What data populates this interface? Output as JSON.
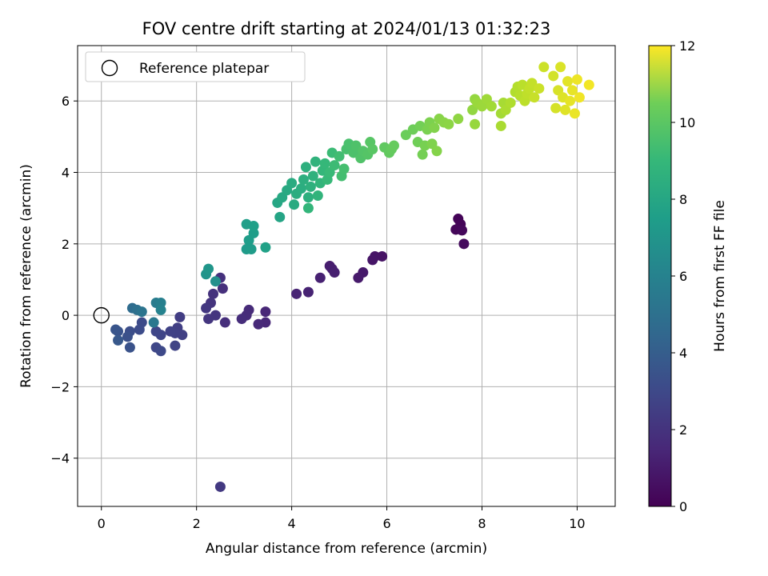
{
  "chart_data": {
    "type": "scatter",
    "title": "FOV centre drift starting at 2024/01/13 01:32:23",
    "xlabel": "Angular distance from reference (arcmin)",
    "ylabel": "Rotation from reference (arcmin)",
    "xlim": [
      -0.5,
      10.8
    ],
    "ylim": [
      -5.35,
      7.55
    ],
    "xticks": [
      0,
      2,
      4,
      6,
      8,
      10
    ],
    "yticks": [
      -4,
      -2,
      0,
      2,
      4,
      6
    ],
    "xtick_labels": [
      "0",
      "2",
      "4",
      "6",
      "8",
      "10"
    ],
    "ytick_labels": [
      "−4",
      "−2",
      "0",
      "2",
      "4",
      "6"
    ],
    "grid": true,
    "legend": {
      "position": "top-left",
      "label": "Reference platepar"
    },
    "reference_point": {
      "x": 0,
      "y": 0
    },
    "colorbar": {
      "label": "Hours from first FF file",
      "range": [
        0,
        12
      ],
      "ticks": [
        0,
        2,
        4,
        6,
        8,
        10,
        12
      ],
      "tick_labels": [
        "0",
        "2",
        "4",
        "6",
        "8",
        "10",
        "12"
      ],
      "colormap": "viridis"
    },
    "points": [
      {
        "x": 7.5,
        "y": 2.7,
        "c": 0.1
      },
      {
        "x": 7.55,
        "y": 2.55,
        "c": 0.15
      },
      {
        "x": 7.45,
        "y": 2.4,
        "c": 0.2
      },
      {
        "x": 7.58,
        "y": 2.38,
        "c": 0.25
      },
      {
        "x": 7.62,
        "y": 2.0,
        "c": 0.35
      },
      {
        "x": 5.9,
        "y": 1.65,
        "c": 0.6
      },
      {
        "x": 5.75,
        "y": 1.65,
        "c": 0.65
      },
      {
        "x": 5.7,
        "y": 1.55,
        "c": 0.7
      },
      {
        "x": 5.5,
        "y": 1.2,
        "c": 0.8
      },
      {
        "x": 5.4,
        "y": 1.05,
        "c": 0.85
      },
      {
        "x": 4.8,
        "y": 1.38,
        "c": 0.95
      },
      {
        "x": 4.85,
        "y": 1.3,
        "c": 1.0
      },
      {
        "x": 4.9,
        "y": 1.2,
        "c": 1.05
      },
      {
        "x": 4.6,
        "y": 1.05,
        "c": 1.1
      },
      {
        "x": 4.35,
        "y": 0.65,
        "c": 1.15
      },
      {
        "x": 4.1,
        "y": 0.6,
        "c": 1.2
      },
      {
        "x": 3.45,
        "y": 0.1,
        "c": 1.3
      },
      {
        "x": 3.45,
        "y": -0.2,
        "c": 1.35
      },
      {
        "x": 3.3,
        "y": -0.25,
        "c": 1.4
      },
      {
        "x": 3.1,
        "y": 0.15,
        "c": 1.45
      },
      {
        "x": 3.05,
        "y": 0.0,
        "c": 1.5
      },
      {
        "x": 2.95,
        "y": -0.1,
        "c": 1.55
      },
      {
        "x": 2.6,
        "y": -0.2,
        "c": 1.6
      },
      {
        "x": 2.55,
        "y": 0.75,
        "c": 1.65
      },
      {
        "x": 2.5,
        "y": 1.05,
        "c": 1.7
      },
      {
        "x": 2.35,
        "y": 0.6,
        "c": 1.75
      },
      {
        "x": 2.3,
        "y": 0.35,
        "c": 1.8
      },
      {
        "x": 2.4,
        "y": 0.0,
        "c": 1.85
      },
      {
        "x": 2.25,
        "y": -0.1,
        "c": 1.9
      },
      {
        "x": 2.2,
        "y": 0.2,
        "c": 1.95
      },
      {
        "x": 2.5,
        "y": -4.8,
        "c": 2.0
      },
      {
        "x": 1.65,
        "y": -0.05,
        "c": 2.2
      },
      {
        "x": 1.6,
        "y": -0.35,
        "c": 2.25
      },
      {
        "x": 1.7,
        "y": -0.55,
        "c": 2.3
      },
      {
        "x": 1.55,
        "y": -0.5,
        "c": 2.35
      },
      {
        "x": 1.45,
        "y": -0.45,
        "c": 2.4
      },
      {
        "x": 1.55,
        "y": -0.85,
        "c": 2.45
      },
      {
        "x": 1.25,
        "y": -0.55,
        "c": 2.5
      },
      {
        "x": 1.15,
        "y": -0.45,
        "c": 2.55
      },
      {
        "x": 1.15,
        "y": -0.9,
        "c": 2.6
      },
      {
        "x": 1.25,
        "y": -1.0,
        "c": 2.65
      },
      {
        "x": 0.85,
        "y": -0.2,
        "c": 2.75
      },
      {
        "x": 0.8,
        "y": -0.4,
        "c": 2.8
      },
      {
        "x": 0.6,
        "y": -0.45,
        "c": 2.9
      },
      {
        "x": 0.55,
        "y": -0.6,
        "c": 3.0
      },
      {
        "x": 0.6,
        "y": -0.9,
        "c": 3.05
      },
      {
        "x": 0.35,
        "y": -0.45,
        "c": 3.1
      },
      {
        "x": 0.3,
        "y": -0.4,
        "c": 3.2
      },
      {
        "x": 0.35,
        "y": -0.7,
        "c": 3.3
      },
      {
        "x": 0.65,
        "y": 0.2,
        "c": 4.2
      },
      {
        "x": 0.75,
        "y": 0.15,
        "c": 4.4
      },
      {
        "x": 0.85,
        "y": 0.1,
        "c": 4.6
      },
      {
        "x": 1.1,
        "y": -0.2,
        "c": 4.8
      },
      {
        "x": 1.15,
        "y": 0.35,
        "c": 5.0
      },
      {
        "x": 1.25,
        "y": 0.35,
        "c": 5.2
      },
      {
        "x": 1.25,
        "y": 0.15,
        "c": 5.35
      },
      {
        "x": 2.4,
        "y": 0.95,
        "c": 6.0
      },
      {
        "x": 2.2,
        "y": 1.15,
        "c": 6.2
      },
      {
        "x": 2.25,
        "y": 1.3,
        "c": 6.3
      },
      {
        "x": 3.05,
        "y": 1.85,
        "c": 6.5
      },
      {
        "x": 3.15,
        "y": 1.85,
        "c": 6.55
      },
      {
        "x": 3.1,
        "y": 2.1,
        "c": 6.6
      },
      {
        "x": 3.2,
        "y": 2.3,
        "c": 6.65
      },
      {
        "x": 3.05,
        "y": 2.55,
        "c": 6.7
      },
      {
        "x": 3.2,
        "y": 2.5,
        "c": 6.75
      },
      {
        "x": 3.45,
        "y": 1.9,
        "c": 6.8
      },
      {
        "x": 3.75,
        "y": 2.75,
        "c": 7.0
      },
      {
        "x": 3.7,
        "y": 3.15,
        "c": 7.1
      },
      {
        "x": 3.8,
        "y": 3.3,
        "c": 7.2
      },
      {
        "x": 3.9,
        "y": 3.5,
        "c": 7.25
      },
      {
        "x": 4.05,
        "y": 3.1,
        "c": 7.3
      },
      {
        "x": 4.0,
        "y": 3.7,
        "c": 7.35
      },
      {
        "x": 4.1,
        "y": 3.4,
        "c": 7.4
      },
      {
        "x": 4.2,
        "y": 3.55,
        "c": 7.45
      },
      {
        "x": 4.25,
        "y": 3.8,
        "c": 7.5
      },
      {
        "x": 4.3,
        "y": 4.15,
        "c": 7.55
      },
      {
        "x": 4.35,
        "y": 3.3,
        "c": 7.6
      },
      {
        "x": 4.4,
        "y": 3.6,
        "c": 7.65
      },
      {
        "x": 4.45,
        "y": 3.9,
        "c": 7.7
      },
      {
        "x": 4.5,
        "y": 4.3,
        "c": 7.75
      },
      {
        "x": 4.55,
        "y": 3.35,
        "c": 7.8
      },
      {
        "x": 4.6,
        "y": 3.7,
        "c": 7.85
      },
      {
        "x": 4.35,
        "y": 3.0,
        "c": 7.9
      },
      {
        "x": 4.65,
        "y": 4.05,
        "c": 7.95
      },
      {
        "x": 4.7,
        "y": 4.25,
        "c": 8.0
      },
      {
        "x": 4.75,
        "y": 3.8,
        "c": 8.05
      },
      {
        "x": 4.8,
        "y": 4.0,
        "c": 8.1
      },
      {
        "x": 4.85,
        "y": 4.55,
        "c": 8.15
      },
      {
        "x": 4.9,
        "y": 4.2,
        "c": 8.2
      },
      {
        "x": 5.0,
        "y": 4.45,
        "c": 8.3
      },
      {
        "x": 5.05,
        "y": 3.9,
        "c": 8.35
      },
      {
        "x": 5.1,
        "y": 4.1,
        "c": 8.4
      },
      {
        "x": 5.15,
        "y": 4.65,
        "c": 8.45
      },
      {
        "x": 5.2,
        "y": 4.8,
        "c": 8.5
      },
      {
        "x": 5.3,
        "y": 4.55,
        "c": 8.55
      },
      {
        "x": 5.35,
        "y": 4.75,
        "c": 8.6
      },
      {
        "x": 5.45,
        "y": 4.4,
        "c": 8.65
      },
      {
        "x": 5.5,
        "y": 4.6,
        "c": 8.7
      },
      {
        "x": 5.6,
        "y": 4.5,
        "c": 8.75
      },
      {
        "x": 5.65,
        "y": 4.85,
        "c": 8.8
      },
      {
        "x": 5.7,
        "y": 4.65,
        "c": 8.85
      },
      {
        "x": 5.95,
        "y": 4.7,
        "c": 9.0
      },
      {
        "x": 6.05,
        "y": 4.55,
        "c": 9.05
      },
      {
        "x": 6.1,
        "y": 4.65,
        "c": 9.1
      },
      {
        "x": 6.15,
        "y": 4.75,
        "c": 9.15
      },
      {
        "x": 6.4,
        "y": 5.05,
        "c": 9.25
      },
      {
        "x": 6.55,
        "y": 5.2,
        "c": 9.3
      },
      {
        "x": 6.65,
        "y": 4.85,
        "c": 9.35
      },
      {
        "x": 6.7,
        "y": 5.3,
        "c": 9.4
      },
      {
        "x": 6.75,
        "y": 4.5,
        "c": 9.45
      },
      {
        "x": 6.8,
        "y": 4.75,
        "c": 9.5
      },
      {
        "x": 6.85,
        "y": 5.2,
        "c": 9.55
      },
      {
        "x": 6.9,
        "y": 5.4,
        "c": 9.6
      },
      {
        "x": 6.95,
        "y": 4.8,
        "c": 9.65
      },
      {
        "x": 7.0,
        "y": 5.25,
        "c": 9.7
      },
      {
        "x": 7.05,
        "y": 4.6,
        "c": 9.75
      },
      {
        "x": 7.1,
        "y": 5.5,
        "c": 9.8
      },
      {
        "x": 7.2,
        "y": 5.4,
        "c": 9.85
      },
      {
        "x": 7.3,
        "y": 5.35,
        "c": 9.9
      },
      {
        "x": 7.5,
        "y": 5.5,
        "c": 9.95
      },
      {
        "x": 7.8,
        "y": 5.75,
        "c": 10.0
      },
      {
        "x": 7.85,
        "y": 6.05,
        "c": 10.05
      },
      {
        "x": 7.85,
        "y": 5.35,
        "c": 10.1
      },
      {
        "x": 7.9,
        "y": 5.95,
        "c": 10.15
      },
      {
        "x": 8.0,
        "y": 5.85,
        "c": 10.2
      },
      {
        "x": 8.1,
        "y": 6.05,
        "c": 10.25
      },
      {
        "x": 8.2,
        "y": 5.85,
        "c": 10.3
      },
      {
        "x": 8.4,
        "y": 5.65,
        "c": 10.35
      },
      {
        "x": 8.45,
        "y": 5.95,
        "c": 10.4
      },
      {
        "x": 8.4,
        "y": 5.3,
        "c": 10.45
      },
      {
        "x": 8.5,
        "y": 5.75,
        "c": 10.5
      },
      {
        "x": 8.6,
        "y": 5.95,
        "c": 10.55
      },
      {
        "x": 8.7,
        "y": 6.25,
        "c": 10.6
      },
      {
        "x": 8.75,
        "y": 6.4,
        "c": 10.65
      },
      {
        "x": 8.8,
        "y": 6.15,
        "c": 10.7
      },
      {
        "x": 8.85,
        "y": 6.45,
        "c": 10.75
      },
      {
        "x": 8.9,
        "y": 6.0,
        "c": 10.8
      },
      {
        "x": 8.95,
        "y": 6.2,
        "c": 10.85
      },
      {
        "x": 9.0,
        "y": 6.35,
        "c": 10.9
      },
      {
        "x": 9.05,
        "y": 6.5,
        "c": 10.95
      },
      {
        "x": 9.1,
        "y": 6.1,
        "c": 11.0
      },
      {
        "x": 9.2,
        "y": 6.35,
        "c": 11.05
      },
      {
        "x": 9.3,
        "y": 6.95,
        "c": 11.1
      },
      {
        "x": 9.5,
        "y": 6.7,
        "c": 11.2
      },
      {
        "x": 9.55,
        "y": 5.8,
        "c": 11.25
      },
      {
        "x": 9.6,
        "y": 6.3,
        "c": 11.3
      },
      {
        "x": 9.65,
        "y": 6.95,
        "c": 11.35
      },
      {
        "x": 9.7,
        "y": 6.1,
        "c": 11.4
      },
      {
        "x": 9.75,
        "y": 5.75,
        "c": 11.45
      },
      {
        "x": 9.8,
        "y": 6.55,
        "c": 11.5
      },
      {
        "x": 9.85,
        "y": 6.0,
        "c": 11.55
      },
      {
        "x": 9.9,
        "y": 6.3,
        "c": 11.6
      },
      {
        "x": 9.95,
        "y": 5.65,
        "c": 11.65
      },
      {
        "x": 10.0,
        "y": 6.6,
        "c": 11.7
      },
      {
        "x": 10.05,
        "y": 6.1,
        "c": 11.75
      },
      {
        "x": 10.25,
        "y": 6.45,
        "c": 11.8
      }
    ]
  }
}
